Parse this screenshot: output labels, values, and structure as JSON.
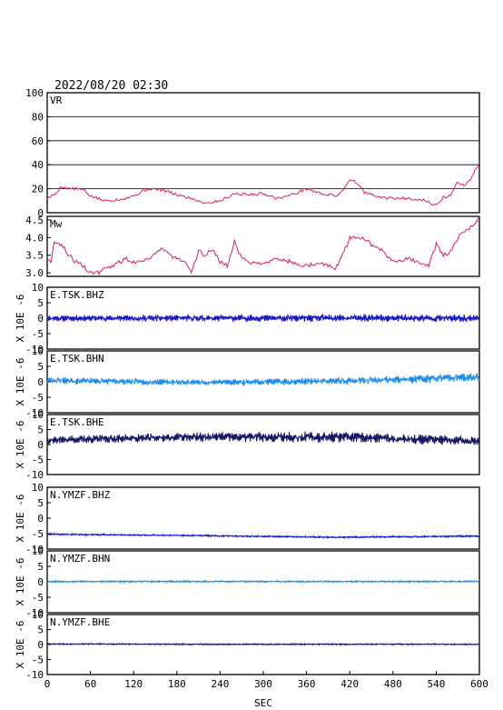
{
  "header": {
    "datetime": "2022/08/20 02:30"
  },
  "x_axis": {
    "label": "SEC",
    "ticks": [
      0,
      60,
      120,
      180,
      240,
      300,
      360,
      420,
      480,
      540,
      600
    ],
    "range": [
      0,
      600
    ]
  },
  "colors": {
    "vr": "#e0204a",
    "mw": "#d81e4e",
    "bhz": "#1414c8",
    "bhn": "#1e8ce6",
    "bhe": "#141464",
    "axis": "#000000"
  },
  "chart_data": [
    {
      "type": "line",
      "id": "vr",
      "label": "VR",
      "ylim": [
        0,
        100
      ],
      "yticks": [
        0,
        20,
        40,
        60,
        80,
        100
      ],
      "grid": true,
      "series": [
        {
          "x": [
            0,
            10,
            20,
            30,
            40,
            50,
            60,
            80,
            100,
            120,
            140,
            160,
            180,
            200,
            220,
            240,
            260,
            280,
            300,
            320,
            340,
            360,
            380,
            400,
            410,
            420,
            430,
            440,
            460,
            480,
            500,
            520,
            540,
            550,
            560,
            570,
            580,
            590,
            600
          ],
          "y": [
            12,
            15,
            22,
            20,
            20,
            19,
            14,
            10,
            11,
            14,
            20,
            19,
            15,
            12,
            8,
            10,
            16,
            15,
            16,
            12,
            15,
            20,
            16,
            14,
            18,
            28,
            25,
            17,
            13,
            12,
            12,
            11,
            6,
            13,
            14,
            26,
            22,
            30,
            42
          ]
        }
      ]
    },
    {
      "type": "line",
      "id": "mw",
      "label": "Mw",
      "ylim": [
        2.9,
        4.6
      ],
      "yticks": [
        3.0,
        3.5,
        4.0,
        4.5
      ],
      "series": [
        {
          "x": [
            0,
            5,
            10,
            20,
            30,
            40,
            50,
            60,
            70,
            80,
            90,
            100,
            110,
            120,
            140,
            160,
            170,
            180,
            190,
            200,
            210,
            220,
            230,
            240,
            250,
            260,
            270,
            280,
            290,
            300,
            320,
            340,
            360,
            380,
            400,
            410,
            420,
            440,
            450,
            460,
            470,
            480,
            500,
            520,
            530,
            540,
            550,
            560,
            570,
            580,
            590,
            600
          ],
          "y": [
            3.4,
            3.3,
            3.9,
            3.8,
            3.5,
            3.3,
            3.2,
            3.0,
            3.0,
            3.1,
            3.2,
            3.3,
            3.4,
            3.3,
            3.4,
            3.7,
            3.5,
            3.4,
            3.3,
            3.0,
            3.6,
            3.5,
            3.7,
            3.3,
            3.2,
            3.9,
            3.4,
            3.3,
            3.3,
            3.3,
            3.4,
            3.3,
            3.2,
            3.3,
            3.1,
            3.5,
            4.0,
            4.0,
            3.8,
            3.7,
            3.5,
            3.3,
            3.4,
            3.3,
            3.2,
            3.8,
            3.5,
            3.6,
            4.0,
            4.2,
            4.3,
            4.6
          ]
        }
      ]
    },
    {
      "type": "line",
      "id": "w1",
      "label": "E.TSK.BHZ",
      "color": "#1414c8",
      "ylim": [
        -10,
        10
      ],
      "yticks": [
        -10,
        -5,
        0,
        5,
        10
      ],
      "ylabel": "X 10E -6",
      "base": [
        0,
        0,
        0,
        0
      ],
      "amp": [
        0.7,
        0.8,
        0.9,
        0.9
      ],
      "seed": 11
    },
    {
      "type": "line",
      "id": "w2",
      "label": "E.TSK.BHN",
      "color": "#1e8ce6",
      "ylim": [
        -10,
        10
      ],
      "yticks": [
        -10,
        -5,
        0,
        5,
        10
      ],
      "ylabel": "X 10E -6",
      "base": [
        0.5,
        -0.2,
        0.2,
        1.5
      ],
      "amp": [
        0.9,
        0.7,
        0.9,
        1.1
      ],
      "seed": 23
    },
    {
      "type": "line",
      "id": "w3",
      "label": "E.TSK.BHE",
      "color": "#141464",
      "ylim": [
        -10,
        10
      ],
      "yticks": [
        -10,
        -5,
        0,
        5,
        10
      ],
      "ylabel": "X 10E -6",
      "base": [
        1.5,
        2.5,
        2.5,
        1.2
      ],
      "amp": [
        1.0,
        1.2,
        1.4,
        1.1
      ],
      "seed": 37
    },
    {
      "type": "line",
      "id": "w4",
      "label": "N.YMZF.BHZ",
      "color": "#1414c8",
      "ylim": [
        -10,
        10
      ],
      "yticks": [
        -10,
        -5,
        0,
        5,
        10
      ],
      "ylabel": "X 10E -6",
      "base": [
        -5.2,
        -5.6,
        -6.2,
        -5.8
      ],
      "amp": [
        0.2,
        0.2,
        0.2,
        0.2
      ],
      "seed": 41
    },
    {
      "type": "line",
      "id": "w5",
      "label": "N.YMZF.BHN",
      "color": "#1e8ce6",
      "ylim": [
        -10,
        10
      ],
      "yticks": [
        -10,
        -5,
        0,
        5,
        10
      ],
      "ylabel": "X 10E -6",
      "base": [
        0.1,
        0.1,
        0.1,
        0.1
      ],
      "amp": [
        0.2,
        0.2,
        0.2,
        0.2
      ],
      "seed": 53
    },
    {
      "type": "line",
      "id": "w6",
      "label": "N.YMZF.BHE",
      "color": "#141464",
      "ylim": [
        -10,
        10
      ],
      "yticks": [
        -10,
        -5,
        0,
        5,
        10
      ],
      "ylabel": "X 10E -6",
      "base": [
        0.2,
        0.1,
        0.1,
        0.1
      ],
      "amp": [
        0.15,
        0.15,
        0.15,
        0.15
      ],
      "seed": 67
    }
  ]
}
